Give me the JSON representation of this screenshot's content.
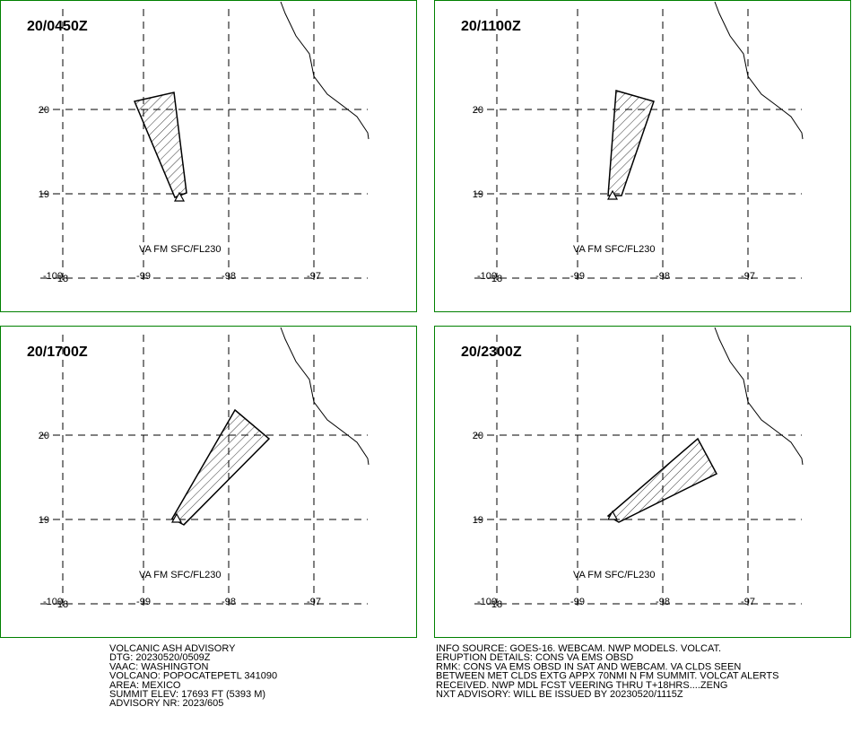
{
  "panels": [
    {
      "time": "20/0450Z",
      "label": "VA FM SFC/FL230"
    },
    {
      "time": "20/1100Z",
      "label": "VA FM SFC/FL230"
    },
    {
      "time": "20/1700Z",
      "label": "VA FM SFC/FL230"
    },
    {
      "time": "20/2300Z",
      "label": "VA FM SFC/FL230"
    }
  ],
  "grid": {
    "longitudes": [
      "-100",
      "-99",
      "-98",
      "-97"
    ],
    "latitudes": [
      "20",
      "19",
      "18"
    ]
  },
  "advisory_left": [
    "VOLCANIC ASH ADVISORY",
    "DTG: 20230520/0509Z",
    "VAAC: WASHINGTON",
    "VOLCANO: POPOCATEPETL 341090",
    "AREA: MEXICO",
    "SUMMIT ELEV: 17693 FT (5393 M)",
    "ADVISORY NR: 2023/605"
  ],
  "advisory_right": [
    "INFO SOURCE: GOES-16. WEBCAM. NWP MODELS. VOLCAT.",
    "ERUPTION DETAILS: CONS VA EMS OBSD",
    "RMK: CONS VA EMS OBSD IN SAT AND WEBCAM. VA CLDS SEEN",
    "BETWEEN MET CLDS EXTG APPX 70NMI N FM SUMMIT. VOLCAT ALERTS",
    "RECEIVED. NWP MDL FCST VEERING THRU T+18HRS....ZENG",
    "NXT ADVISORY: WILL BE ISSUED BY 20230520/1115Z"
  ]
}
